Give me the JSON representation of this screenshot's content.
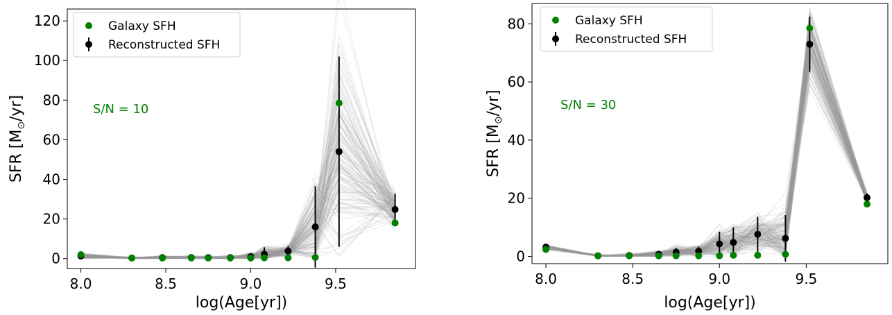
{
  "chart_data": [
    {
      "type": "scatter",
      "xlabel": "log(Age[yr])",
      "ylabel_prefix": "SFR [M",
      "ylabel_sub": "⊙",
      "ylabel_suffix": "/yr]",
      "xlim": [
        7.92,
        9.97
      ],
      "ylim": [
        -5,
        126
      ],
      "xticks": [
        8.0,
        8.5,
        9.0,
        9.5
      ],
      "xtick_labels": [
        "8.0",
        "8.5",
        "9.0",
        "9.5"
      ],
      "yticks": [
        0,
        20,
        40,
        60,
        80,
        100,
        120
      ],
      "ytick_labels": [
        "0",
        "20",
        "40",
        "60",
        "80",
        "100",
        "120"
      ],
      "annotation": "S/N = 10",
      "legend_position": "top-left",
      "colors": {
        "galaxy": "#008000",
        "reconstructed": "#000000",
        "ensemble": "#999999"
      },
      "x": [
        8.0,
        8.3,
        8.48,
        8.65,
        8.75,
        8.88,
        9.0,
        9.08,
        9.22,
        9.38,
        9.52,
        9.85
      ],
      "series": [
        {
          "name": "Galaxy SFH",
          "values": [
            2.0,
            0.3,
            0.3,
            0.3,
            0.3,
            0.3,
            0.3,
            0.4,
            0.4,
            0.6,
            78.5,
            18.0
          ]
        },
        {
          "name": "Reconstructed SFH",
          "values": [
            1.3,
            0.3,
            0.5,
            0.5,
            0.5,
            0.5,
            1.0,
            2.2,
            3.8,
            16.0,
            54.0,
            24.8
          ],
          "errors": [
            1.0,
            0.4,
            0.6,
            0.7,
            0.7,
            0.7,
            1.5,
            3.5,
            2.5,
            20.5,
            48.0,
            8.0
          ]
        }
      ]
    },
    {
      "type": "scatter",
      "xlabel": "log(Age[yr])",
      "ylabel_prefix": "SFR [M",
      "ylabel_sub": "⊙",
      "ylabel_suffix": "/yr]",
      "xlim": [
        7.92,
        9.97
      ],
      "ylim": [
        -2.5,
        87
      ],
      "xticks": [
        8.0,
        8.5,
        9.0,
        9.5
      ],
      "xtick_labels": [
        "8.0",
        "8.5",
        "9.0",
        "9.5"
      ],
      "yticks": [
        0,
        20,
        40,
        60,
        80
      ],
      "ytick_labels": [
        "0",
        "20",
        "40",
        "60",
        "80"
      ],
      "annotation": "S/N = 30",
      "legend_position": "top-left",
      "colors": {
        "galaxy": "#008000",
        "reconstructed": "#000000",
        "ensemble": "#999999"
      },
      "x": [
        8.0,
        8.3,
        8.48,
        8.65,
        8.75,
        8.88,
        9.0,
        9.08,
        9.22,
        9.38,
        9.52,
        9.85
      ],
      "series": [
        {
          "name": "Galaxy SFH",
          "values": [
            2.4,
            0.2,
            0.2,
            0.2,
            0.2,
            0.2,
            0.2,
            0.4,
            0.4,
            0.7,
            78.5,
            18.0
          ],
          "errors": []
        },
        {
          "name": "Reconstructed SFH",
          "values": [
            3.2,
            0.2,
            0.3,
            0.7,
            1.4,
            1.8,
            4.3,
            4.8,
            7.6,
            6.2,
            73.0,
            20.2
          ],
          "errors": [
            0.6,
            0.3,
            0.4,
            0.9,
            1.5,
            1.5,
            4.2,
            5.2,
            6.0,
            8.0,
            9.5,
            1.5
          ]
        }
      ]
    }
  ]
}
